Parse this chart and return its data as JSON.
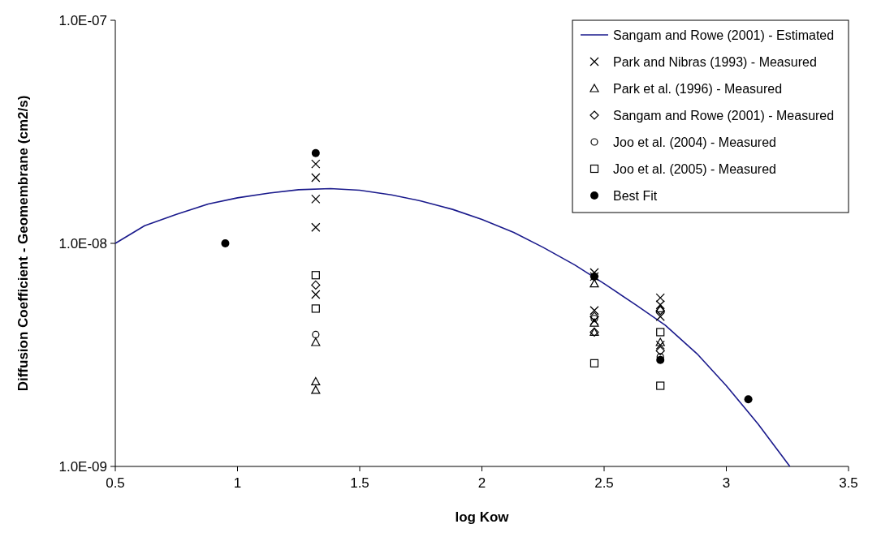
{
  "chart_data": {
    "type": "scatter",
    "xlabel": "log Kow",
    "ylabel": "Diffusion Coefficient - Geomembrane (cm2/s)",
    "log": "y",
    "xlim": [
      0.5,
      3.5
    ],
    "xticks": [
      0.5,
      1,
      1.5,
      2,
      2.5,
      3,
      3.5
    ],
    "ylim": [
      1e-09,
      1e-07
    ],
    "yticks": [
      {
        "value": 1e-09,
        "label": "1.0E-09"
      },
      {
        "value": 1e-08,
        "label": "1.0E-08"
      },
      {
        "value": 1e-07,
        "label": "1.0E-07"
      }
    ],
    "grid": false,
    "legend": "top right",
    "series": [
      {
        "name": "Sangam and Rowe (2001) - Estimated",
        "type": "line",
        "color": "#1a1a8c",
        "marker": "none",
        "line_style": "solid",
        "x": [
          0.5,
          0.62,
          0.75,
          0.88,
          1.0,
          1.13,
          1.25,
          1.38,
          1.5,
          1.63,
          1.75,
          1.88,
          2.0,
          2.13,
          2.25,
          2.38,
          2.5,
          2.63,
          2.75,
          2.88,
          3.0,
          3.13,
          3.26
        ],
        "values": [
          1e-08,
          1.2e-08,
          1.35e-08,
          1.5e-08,
          1.6e-08,
          1.68e-08,
          1.74e-08,
          1.76e-08,
          1.73e-08,
          1.65e-08,
          1.55e-08,
          1.42e-08,
          1.28e-08,
          1.12e-08,
          9.6e-09,
          8e-09,
          6.6e-09,
          5.3e-09,
          4.3e-09,
          3.2e-09,
          2.3e-09,
          1.55e-09,
          1e-09
        ]
      },
      {
        "name": "Park and Nibras (1993) - Measured",
        "color": "#000000",
        "marker": "cross",
        "x": [
          1.32,
          1.32,
          1.32,
          1.32,
          1.32,
          2.46,
          2.46,
          2.46,
          2.46,
          2.73,
          2.73,
          2.73,
          2.73
        ],
        "values": [
          2.27e-08,
          1.97e-08,
          1.58e-08,
          1.18e-08,
          5.9e-09,
          7.4e-09,
          7.1e-09,
          5e-09,
          4.5e-09,
          5.7e-09,
          5.3e-09,
          4.7e-09,
          3.5e-09
        ]
      },
      {
        "name": "Park et al. (1996) - Measured",
        "color": "#000000",
        "marker": "triangle",
        "x": [
          1.32,
          1.32,
          1.32,
          2.46,
          2.46,
          2.46,
          2.73,
          2.73
        ],
        "values": [
          3.6e-09,
          2.4e-09,
          2.2e-09,
          6.6e-09,
          4.4e-09,
          4e-09,
          5.1e-09,
          3.6e-09
        ]
      },
      {
        "name": "Sangam and Rowe (2001) - Measured",
        "color": "#000000",
        "marker": "diamond",
        "x": [
          1.32,
          2.46,
          2.46,
          2.73,
          2.73
        ],
        "values": [
          6.5e-09,
          4.7e-09,
          4e-09,
          5e-09,
          3.3e-09
        ]
      },
      {
        "name": "Joo et al. (2004) - Measured",
        "color": "#000000",
        "marker": "circle",
        "x": [
          1.32,
          2.46,
          2.73
        ],
        "values": [
          3.9e-09,
          4.6e-09,
          3.1e-09
        ]
      },
      {
        "name": "Joo et al. (2005) - Measured",
        "color": "#000000",
        "marker": "square",
        "x": [
          1.32,
          1.32,
          2.46,
          2.73,
          2.73
        ],
        "values": [
          7.2e-09,
          5.1e-09,
          2.9e-09,
          4e-09,
          2.3e-09
        ]
      },
      {
        "name": "Best Fit",
        "color": "#000000",
        "marker": "filled-circle",
        "x": [
          0.95,
          1.32,
          2.46,
          2.73,
          3.09
        ],
        "values": [
          1e-08,
          2.54e-08,
          7.1e-09,
          3e-09,
          2e-09
        ]
      }
    ]
  }
}
